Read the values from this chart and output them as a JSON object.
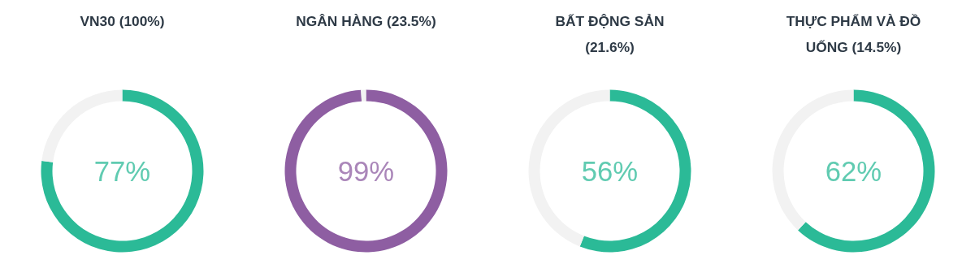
{
  "chart_data": [
    {
      "type": "donut",
      "title": "VN30 (100%)",
      "categories": [
        null,
        null
      ],
      "values": [
        77,
        23
      ],
      "colors": [
        "#2bba97",
        "#f2f2f2"
      ],
      "value_labels": [
        "77%",
        null
      ]
    },
    {
      "type": "donut",
      "title": "NGÂN HÀNG (23.5%)",
      "categories": [
        null,
        null
      ],
      "values": [
        99,
        1
      ],
      "colors": [
        "#8e5ea2",
        "#f2f2f2"
      ],
      "value_labels": [
        "99%",
        null
      ]
    },
    {
      "type": "donut",
      "title": "BẤT ĐỘNG SẢN (21.6%)",
      "categories": [
        null,
        null
      ],
      "values": [
        56,
        44
      ],
      "colors": [
        "#2bba97",
        "#f2f2f2"
      ],
      "value_labels": [
        "56%",
        null
      ]
    },
    {
      "type": "donut",
      "title": "THỰC PHẨM VÀ ĐỒ UỐNG (14.5%)",
      "categories": [
        null,
        null
      ],
      "values": [
        62,
        38
      ],
      "colors": [
        "#2bba97",
        "#f2f2f2"
      ],
      "value_labels": [
        "62%",
        null
      ]
    }
  ]
}
